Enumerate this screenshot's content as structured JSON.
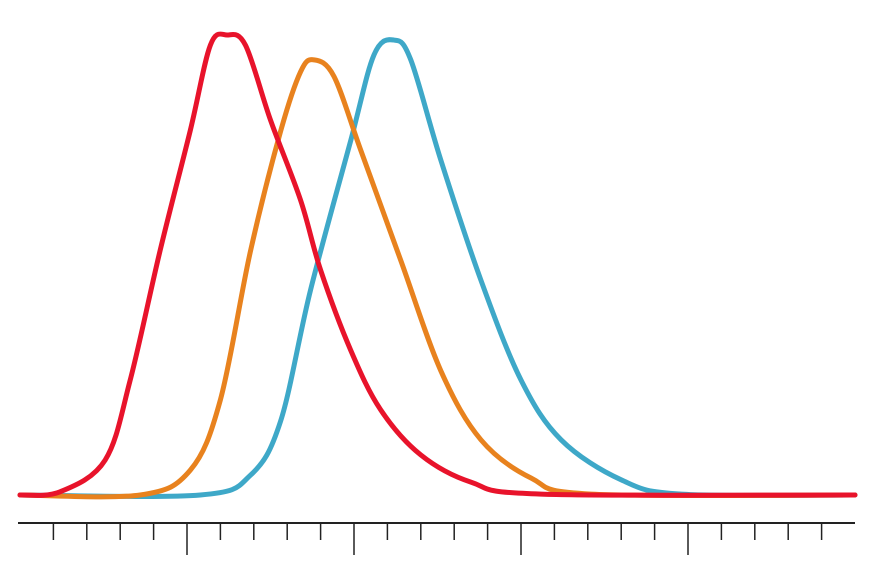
{
  "chart_data": {
    "type": "line",
    "xlim": [
      0,
      25
    ],
    "ylim": [
      0,
      100
    ],
    "xticks": [
      1,
      2,
      3,
      4,
      5,
      6,
      7,
      8,
      9,
      10,
      11,
      12,
      13,
      14,
      15,
      16,
      17,
      18,
      19,
      20,
      21,
      22,
      23,
      24
    ],
    "x_major_ticks": [
      5,
      10,
      15,
      20
    ],
    "series": [
      {
        "color": "#3ea8c8",
        "x": [
          0,
          5.4,
          6.9,
          7.8,
          8.7,
          9.9,
          10.6,
          11.2,
          11.7,
          12.6,
          13.8,
          15.0,
          16.2,
          18.0,
          19.8,
          25
        ],
        "values": [
          0,
          0,
          4.3,
          16,
          44.6,
          77,
          95.7,
          98.9,
          94.6,
          72.8,
          46.7,
          25,
          12,
          3.3,
          0.2,
          0
        ]
      },
      {
        "color": "#e8821e",
        "x": [
          0,
          3.6,
          5.1,
          6.0,
          6.9,
          7.8,
          8.4,
          8.8,
          9.4,
          10.2,
          11.4,
          12.6,
          13.8,
          15.3,
          17.1,
          25
        ],
        "values": [
          0,
          0,
          5.4,
          20.7,
          53,
          79,
          92,
          94.6,
          91,
          75,
          51,
          27,
          12,
          3.7,
          0.2,
          0
        ]
      },
      {
        "color": "#e8132b",
        "x": [
          0,
          1.2,
          2.55,
          3.3,
          4.2,
          5.1,
          5.7,
          6.2,
          6.75,
          7.5,
          8.4,
          9.0,
          9.9,
          10.8,
          12.0,
          13.5,
          15.6,
          25
        ],
        "values": [
          0,
          0.7,
          7.6,
          25,
          53.3,
          79.3,
          97.8,
          100,
          97.8,
          81.5,
          64.1,
          48.9,
          31.5,
          18.5,
          8.7,
          2.8,
          0.2,
          0
        ]
      }
    ]
  }
}
